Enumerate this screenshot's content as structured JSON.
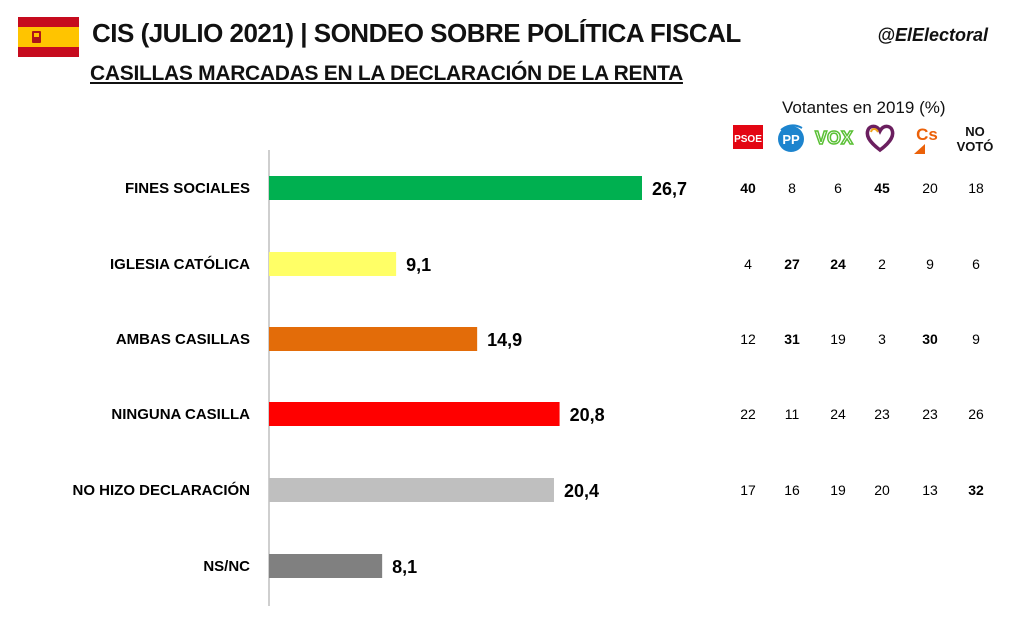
{
  "header": {
    "title": "CIS (JULIO 2021) | SONDEO SOBRE POLÍTICA FISCAL",
    "subtitle": "CASILLAS MARCADAS EN LA DECLARACIÓN DE LA RENTA",
    "handle": "@ElElectoral",
    "flag_colors": [
      "#c60b1e",
      "#ffc400",
      "#c60b1e"
    ]
  },
  "table": {
    "header": "Votantes en 2019 (%)",
    "columns": [
      {
        "key": "psoe",
        "label": "PSOE",
        "icon": "psoe-logo-icon",
        "color": "#e30613"
      },
      {
        "key": "pp",
        "label": "PP",
        "icon": "pp-logo-icon",
        "color": "#1d84ce"
      },
      {
        "key": "vox",
        "label": "VOX",
        "icon": "vox-logo-icon",
        "color": "#5ac035"
      },
      {
        "key": "up",
        "label": "",
        "icon": "unidas-podemos-heart-icon",
        "color": "#6b1f5f"
      },
      {
        "key": "cs",
        "label": "Cs",
        "icon": "ciudadanos-logo-icon",
        "color": "#eb6109"
      },
      {
        "key": "novoto",
        "label": "NO\nVOTÓ",
        "icon": "",
        "color": "#111111"
      }
    ],
    "rows": [
      {
        "values": [
          40,
          8,
          6,
          45,
          20,
          18
        ],
        "bold": [
          true,
          false,
          false,
          true,
          false,
          false
        ]
      },
      {
        "values": [
          4,
          27,
          24,
          2,
          9,
          6
        ],
        "bold": [
          false,
          true,
          true,
          false,
          false,
          false
        ]
      },
      {
        "values": [
          12,
          31,
          19,
          3,
          30,
          9
        ],
        "bold": [
          false,
          true,
          false,
          false,
          true,
          false
        ]
      },
      {
        "values": [
          22,
          11,
          24,
          23,
          23,
          26
        ],
        "bold": [
          false,
          false,
          false,
          false,
          false,
          false
        ]
      },
      {
        "values": [
          17,
          16,
          19,
          20,
          13,
          32
        ],
        "bold": [
          false,
          false,
          false,
          false,
          false,
          true
        ]
      }
    ]
  },
  "chart_data": {
    "type": "bar",
    "orientation": "horizontal",
    "categories": [
      "FINES SOCIALES",
      "IGLESIA CATÓLICA",
      "AMBAS CASILLAS",
      "NINGUNA CASILLA",
      "NO HIZO DECLARACIÓN",
      "NS/NC"
    ],
    "values": [
      26.7,
      9.1,
      14.9,
      20.8,
      20.4,
      8.1
    ],
    "value_labels": [
      "26,7",
      "9,1",
      "14,9",
      "20,8",
      "20,4",
      "8,1"
    ],
    "colors": [
      "#00b050",
      "#ffff66",
      "#e36c09",
      "#ff0000",
      "#bfbfbf",
      "#808080"
    ],
    "xlim": [
      0,
      28
    ],
    "grid": false
  }
}
